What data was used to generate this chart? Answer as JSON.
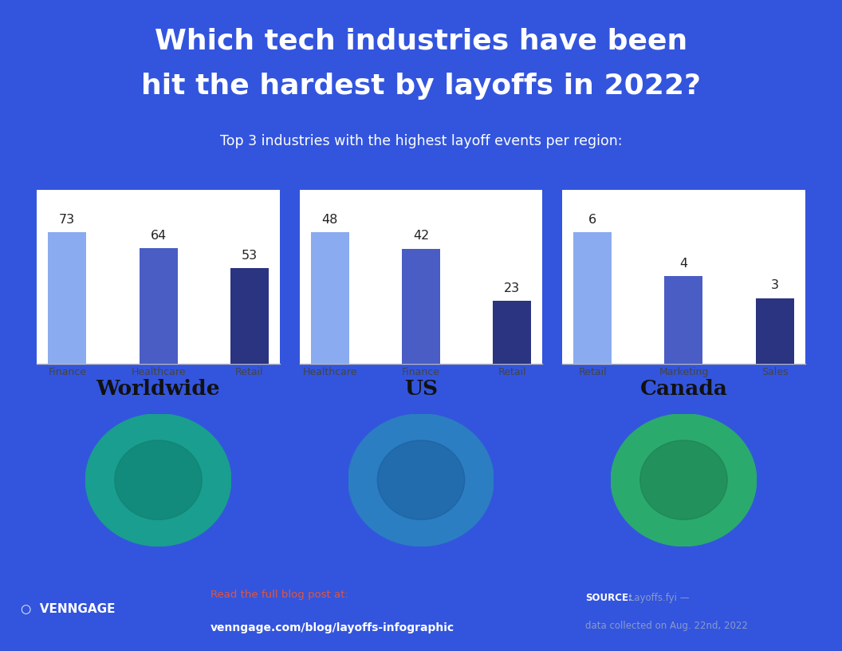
{
  "title_line1": "Which tech industries have been",
  "title_line2": "hit the hardest by layoffs in 2022?",
  "subtitle": "Top 3 industries with the highest layoff events per region:",
  "title_color": "#FFFFFF",
  "subtitle_color": "#FFFFFF",
  "header_bg": "#2B4FCC",
  "footer_bg": "#15205A",
  "card_bg": "#FFFFFF",
  "main_bg": "#3355DD",
  "worldwide": {
    "label": "Worldwide",
    "categories": [
      "Finance",
      "Healthcare",
      "Retail"
    ],
    "values": [
      73,
      64,
      53
    ],
    "colors": [
      "#8AABF0",
      "#4A5DC4",
      "#2B3480"
    ]
  },
  "us": {
    "label": "US",
    "categories": [
      "Healthcare",
      "Finance",
      "Retail"
    ],
    "values": [
      48,
      42,
      23
    ],
    "colors": [
      "#8AABF0",
      "#4A5DC4",
      "#2B3480"
    ]
  },
  "canada": {
    "label": "Canada",
    "categories": [
      "Retail",
      "Marketing",
      "Sales"
    ],
    "values": [
      6,
      4,
      3
    ],
    "colors": [
      "#8AABF0",
      "#4A5DC4",
      "#2B3480"
    ]
  },
  "footer_venngage": "VENNGAGE",
  "footer_cta_label": "Read the full blog post at:",
  "footer_cta_url": "venngage.com/blog/layoffs-infographic",
  "footer_source_bold": "SOURCE:",
  "footer_cta_color": "#E05540",
  "footer_text_color": "#8899CC"
}
